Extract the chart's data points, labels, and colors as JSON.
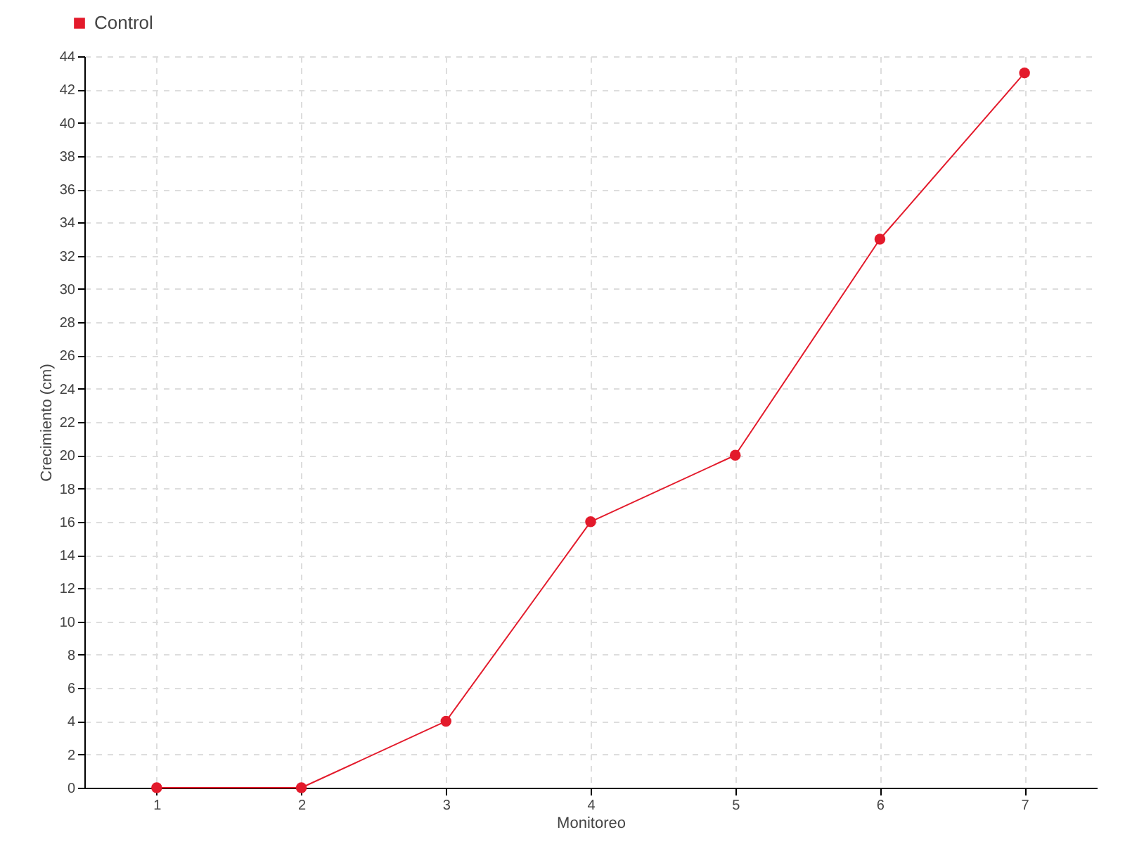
{
  "chart_data": {
    "type": "line",
    "xlabel": "Monitoreo",
    "ylabel": "Crecimiento (cm)",
    "categories": [
      "1",
      "2",
      "3",
      "4",
      "5",
      "6",
      "7"
    ],
    "series": [
      {
        "name": "Control",
        "color": "#e31a2b",
        "values": [
          0,
          0,
          4,
          16,
          20,
          33,
          43
        ]
      }
    ],
    "ylim": [
      0,
      44
    ],
    "yticks": [
      0,
      2,
      4,
      6,
      8,
      10,
      12,
      14,
      16,
      18,
      20,
      22,
      24,
      26,
      28,
      30,
      32,
      34,
      36,
      38,
      40,
      42,
      44
    ],
    "grid": true,
    "legend": "top left",
    "marker": "circle",
    "line_style": "solid"
  }
}
